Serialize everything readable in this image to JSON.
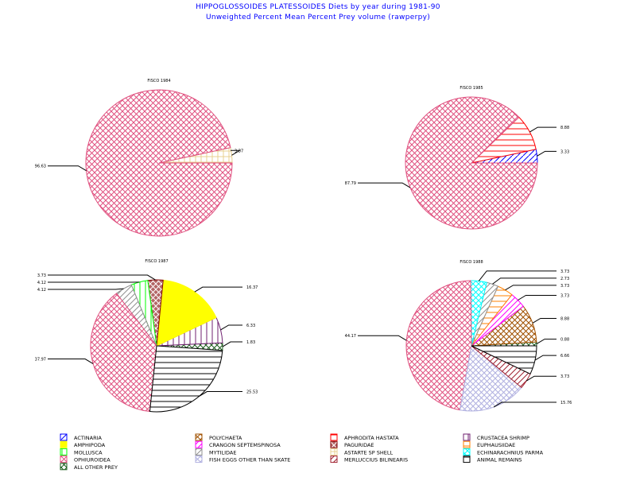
{
  "title": "HIPPOGLOSSOIDES PLATESSOIDES Diets by year during 1981-90",
  "subtitle": "Unweighted Percent Mean Percent Prey  volume (rawperpy)",
  "categories": {
    "ACTINARIA": {
      "label": "ACTINARIA",
      "color": "#0000ff",
      "pattern": "diag-corner"
    },
    "AMPHIPODA": {
      "label": "AMPHIPODA",
      "color": "#ffff00",
      "pattern": "solid"
    },
    "MOLLUSCA": {
      "label": "MOLLUSCA",
      "color": "#00ff00",
      "pattern": "vertical"
    },
    "OPHIUROIDEA": {
      "label": "OPHIUROIDEA",
      "color": "#e0507f",
      "pattern": "crosshatch"
    },
    "ALL OTHER PREY": {
      "label": "ALL OTHER PREY",
      "color": "#1a5c1a",
      "pattern": "cross-x"
    },
    "POLYCHAETA": {
      "label": "POLYCHAETA",
      "color": "#a05000",
      "pattern": "diamond"
    },
    "CRANGON SEPTEMSPINOSA": {
      "label": "CRANGON SEPTEMSPINOSA",
      "color": "#ff00ff",
      "pattern": "diag"
    },
    "MYTILIDAE": {
      "label": "MYTILIDAE",
      "color": "#909090",
      "pattern": "diag"
    },
    "FISH EGGS OTHER THAN SKATE": {
      "label": "FISH EGGS OTHER THAN SKATE",
      "color": "#b0b0e0",
      "pattern": "crosshatch"
    },
    "APHRODITA HASTATA": {
      "label": "APHRODITA HASTATA",
      "color": "#ff0000",
      "pattern": "horizontal"
    },
    "PAGURIDAE": {
      "label": "PAGURIDAE",
      "color": "#800000",
      "pattern": "dense-x"
    },
    "ASTARTE SP SHELL": {
      "label": "ASTARTE SP SHELL",
      "color": "#e8d090",
      "pattern": "grid"
    },
    "MERLUCCIUS BILINEARIS": {
      "label": "MERLUCCIUS BILINEARIS",
      "color": "#a02030",
      "pattern": "diag"
    },
    "CRUSTACEA SHRIMP": {
      "label": "CRUSTACEA SHRIMP",
      "color": "#702070",
      "pattern": "vertical"
    },
    "EUPHAUSIIDAE": {
      "label": "EUPHAUSIIDAE",
      "color": "#ff8000",
      "pattern": "horizontal"
    },
    "ECHINARACHNIUS PARMA": {
      "label": "ECHINARACHNIUS PARMA",
      "color": "#00ffff",
      "pattern": "crosshatch"
    },
    "ANIMAL REMAINS": {
      "label": "ANIMAL REMAINS",
      "color": "#000000",
      "pattern": "horizontal"
    }
  },
  "legend_order": [
    [
      "ACTINARIA",
      "AMPHIPODA",
      "MOLLUSCA",
      "OPHIUROIDEA",
      "ALL OTHER PREY"
    ],
    [
      "POLYCHAETA",
      "CRANGON SEPTEMSPINOSA",
      "MYTILIDAE",
      "FISH EGGS OTHER THAN SKATE"
    ],
    [
      "APHRODITA HASTATA",
      "PAGURIDAE",
      "ASTARTE SP SHELL",
      "MERLUCCIUS BILINEARIS"
    ],
    [
      "CRUSTACEA SHRIMP",
      "EUPHAUSIIDAE",
      "ECHINARACHNIUS PARMA",
      "ANIMAL REMAINS"
    ]
  ],
  "chart_data": [
    {
      "type": "pie",
      "title": "FISCO 1984",
      "start_angle": 0,
      "slices": [
        {
          "category": "ASTARTE SP SHELL",
          "value": 3.37,
          "label": "3.37"
        },
        {
          "category": "OPHIUROIDEA",
          "value": 96.63,
          "label": "96.63"
        }
      ]
    },
    {
      "type": "pie",
      "title": "FISCO 1985",
      "start_angle": 0,
      "slices": [
        {
          "category": "ACTINARIA",
          "value": 3.33,
          "label": "3.33"
        },
        {
          "category": "APHRODITA HASTATA",
          "value": 8.88,
          "label": "8.88"
        },
        {
          "category": "OPHIUROIDEA",
          "value": 87.79,
          "label": "87.79"
        }
      ]
    },
    {
      "type": "pie",
      "title": "FISCO 1987",
      "start_angle": -4,
      "slices": [
        {
          "category": "ALL OTHER PREY",
          "value": 1.83,
          "label": "1.83"
        },
        {
          "category": "CRUSTACEA SHRIMP",
          "value": 6.33,
          "label": "6.33"
        },
        {
          "category": "AMPHIPODA",
          "value": 16.37,
          "label": "16.37"
        },
        {
          "category": "PAGURIDAE",
          "value": 3.73,
          "label": "3.73"
        },
        {
          "category": "MOLLUSCA",
          "value": 4.12,
          "label": "4.12"
        },
        {
          "category": "MYTILIDAE",
          "value": 4.12,
          "label": "4.12"
        },
        {
          "category": "OPHIUROIDEA",
          "value": 37.97,
          "label": "37.97"
        },
        {
          "category": "ANIMAL REMAINS",
          "value": 25.53,
          "label": "25.53"
        }
      ]
    },
    {
      "type": "pie",
      "title": "FISCO 1988",
      "start_angle": 0,
      "slices": [
        {
          "category": "ALL OTHER PREY",
          "value": 0.88,
          "label": "0.88"
        },
        {
          "category": "POLYCHAETA",
          "value": 8.88,
          "label": "8.88"
        },
        {
          "category": "CRANGON SEPTEMSPINOSA",
          "value": 3.73,
          "label": "3.73"
        },
        {
          "category": "EUPHAUSIIDAE",
          "value": 3.73,
          "label": "3.73"
        },
        {
          "category": "MYTILIDAE",
          "value": 2.73,
          "label": "2.73"
        },
        {
          "category": "ECHINARACHNIUS PARMA",
          "value": 3.73,
          "label": "3.73"
        },
        {
          "category": "OPHIUROIDEA",
          "value": 44.17,
          "label": "44.17"
        },
        {
          "category": "FISH EGGS OTHER THAN SKATE",
          "value": 15.76,
          "label": "15.76"
        },
        {
          "category": "MERLUCCIUS BILINEARIS",
          "value": 3.73,
          "label": "3.73"
        },
        {
          "category": "ANIMAL REMAINS",
          "value": 6.66,
          "label": "6.66"
        }
      ]
    }
  ]
}
